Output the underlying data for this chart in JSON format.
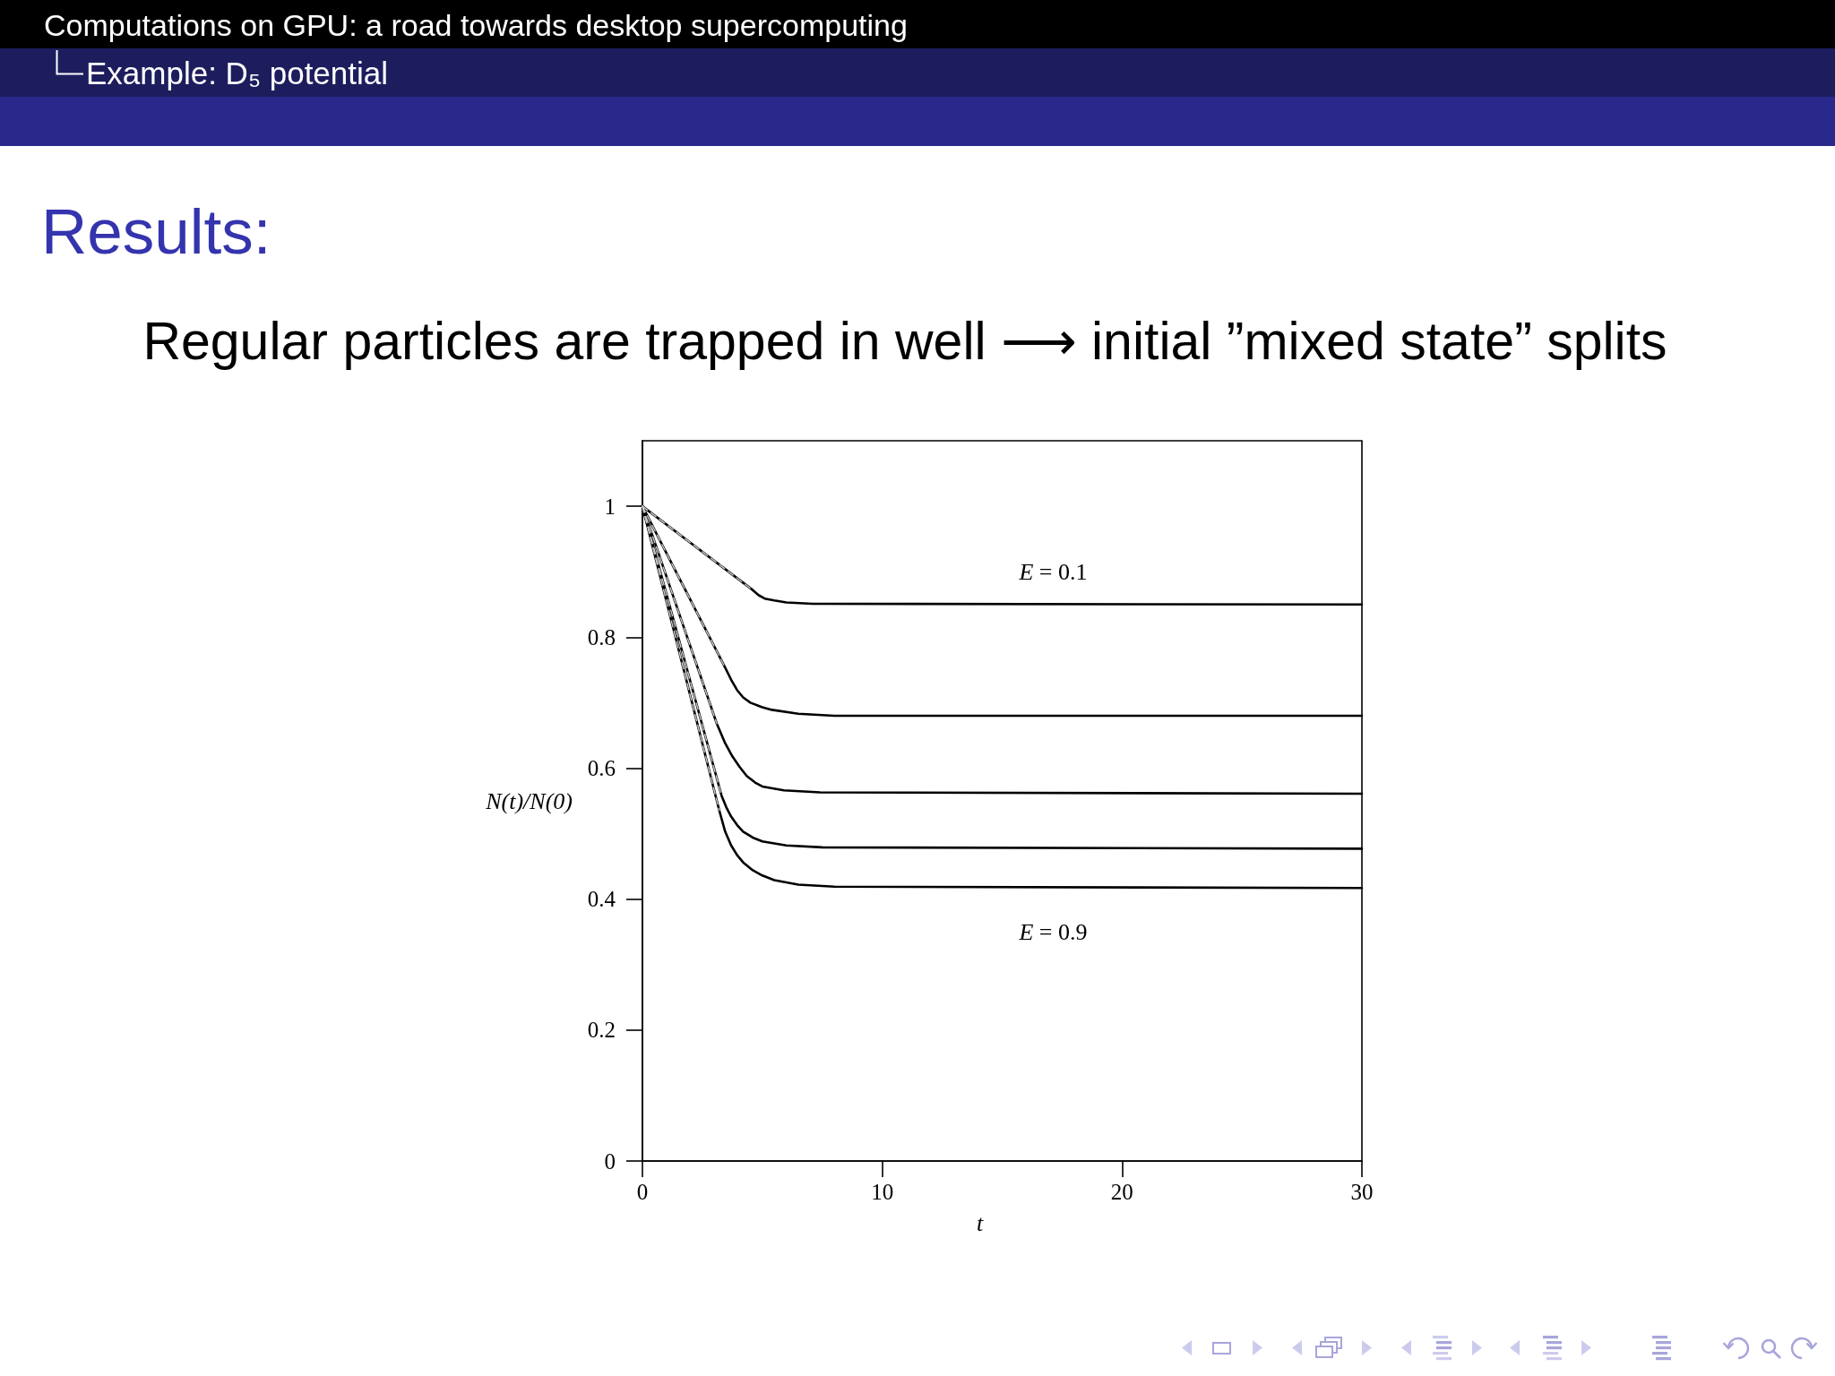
{
  "chart_data": {
    "type": "line",
    "title": "Results:",
    "subtitle": "Regular particles are trapped in well ⟶ initial ”mixed state” splits",
    "xlabel": "t",
    "ylabel": "N(t)/N(0)",
    "annotations": [
      "Computations on GPU: a road towards desktop supercomputing",
      "Example: D₅ potential"
    ],
    "xlim": [
      0,
      30
    ],
    "xticks": [
      0,
      10,
      20,
      30
    ],
    "ylim": [
      0,
      1.1
    ],
    "yticks": [
      0,
      0.2,
      0.4,
      0.6,
      0.8,
      1
    ],
    "line_style": "solid",
    "series": [
      {
        "name": "E = 0.1",
        "color": "#000000",
        "x": [
          0,
          4.6,
          4.85,
          5.1,
          5.5,
          6.0,
          7.1,
          30
        ],
        "values": [
          1,
          0.872,
          0.864,
          0.859,
          0.856,
          0.853,
          0.851,
          0.85
        ]
      },
      {
        "color": "#000000",
        "x": [
          0,
          3.4,
          3.7,
          3.95,
          4.2,
          4.5,
          5.0,
          5.4,
          6.5,
          8,
          30
        ],
        "values": [
          1,
          0.757,
          0.735,
          0.719,
          0.708,
          0.7,
          0.693,
          0.689,
          0.683,
          0.68,
          0.68
        ]
      },
      {
        "color": "#000000",
        "x": [
          0,
          3.1,
          3.45,
          3.75,
          4.05,
          4.35,
          4.7,
          5.0,
          5.9,
          7.4,
          30
        ],
        "values": [
          1,
          0.668,
          0.638,
          0.618,
          0.602,
          0.588,
          0.578,
          0.572,
          0.566,
          0.563,
          0.561
        ]
      },
      {
        "color": "#000000",
        "x": [
          0,
          3.3,
          3.5,
          3.7,
          3.95,
          4.2,
          4.6,
          5.0,
          6.0,
          7.5,
          30
        ],
        "values": [
          1,
          0.558,
          0.54,
          0.526,
          0.513,
          0.503,
          0.494,
          0.488,
          0.482,
          0.479,
          0.477
        ]
      },
      {
        "name": "E = 0.9",
        "color": "#000000",
        "x": [
          0,
          3.2,
          3.45,
          3.7,
          3.95,
          4.2,
          4.6,
          5.0,
          5.5,
          6.5,
          8,
          30
        ],
        "values": [
          1,
          0.536,
          0.503,
          0.482,
          0.467,
          0.456,
          0.444,
          0.436,
          0.429,
          0.422,
          0.419,
          0.417
        ]
      },
      {
        "color": "#c8c8c8",
        "line_style": "dashed",
        "x": [
          0,
          4.6
        ],
        "values": [
          1,
          0.872
        ]
      },
      {
        "color": "#c8c8c8",
        "line_style": "dashed",
        "x": [
          0,
          3.4
        ],
        "values": [
          1,
          0.757
        ]
      },
      {
        "color": "#c8c8c8",
        "line_style": "dashed",
        "x": [
          0,
          3.1
        ],
        "values": [
          1,
          0.668
        ]
      },
      {
        "color": "#c8c8c8",
        "line_style": "dashed",
        "x": [
          0,
          3.3
        ],
        "values": [
          1,
          0.558
        ]
      },
      {
        "color": "#c8c8c8",
        "line_style": "dashed",
        "x": [
          0,
          3.2
        ],
        "values": [
          1,
          0.536
        ]
      }
    ]
  }
}
